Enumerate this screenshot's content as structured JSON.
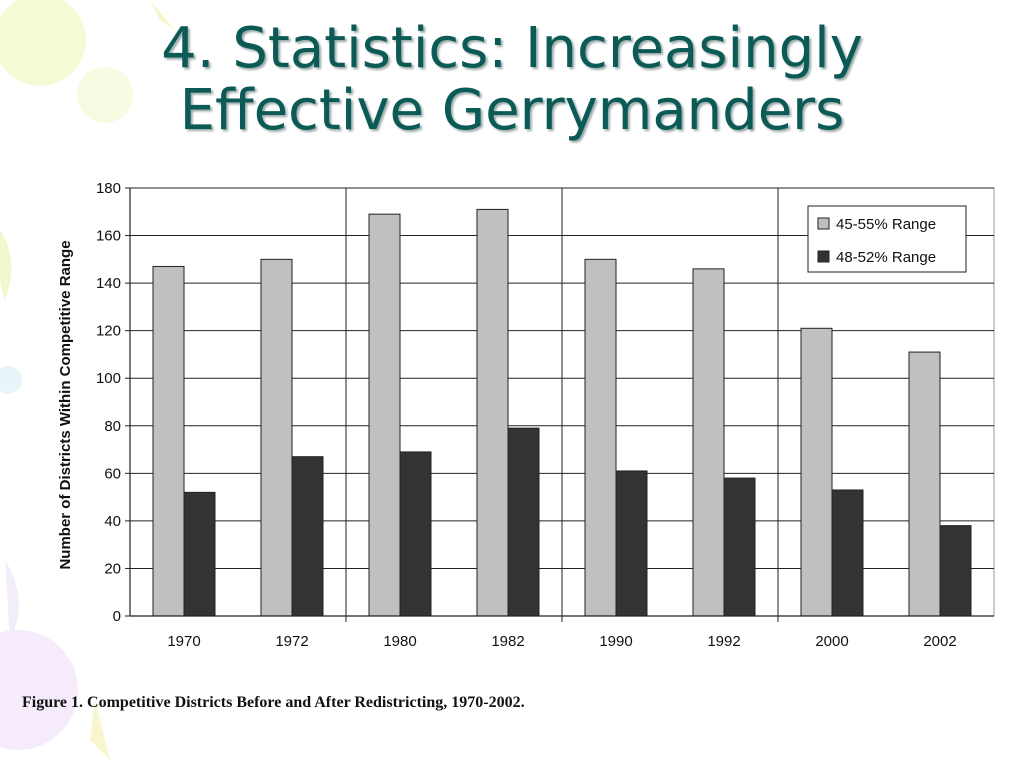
{
  "slide": {
    "title_line1": "4. Statistics: Increasingly",
    "title_line2": "Effective Gerrymanders",
    "caption": "Figure 1.  Competitive Districts Before and After Redistricting, 1970-2002."
  },
  "colors": {
    "title": "#0b5a55",
    "series_light": "#c0c0c0",
    "series_dark": "#333333"
  },
  "chart_data": {
    "type": "bar",
    "title": "",
    "xlabel": "",
    "ylabel": "Number of Districts Within Competitive Range",
    "ylim": [
      0,
      180
    ],
    "yticks": [
      0,
      20,
      40,
      60,
      80,
      100,
      120,
      140,
      160,
      180
    ],
    "categories": [
      "1970",
      "1972",
      "1980",
      "1982",
      "1990",
      "1992",
      "2000",
      "2002"
    ],
    "series": [
      {
        "name": "45-55% Range",
        "values": [
          147,
          150,
          169,
          171,
          150,
          146,
          121,
          111
        ]
      },
      {
        "name": "48-52% Range",
        "values": [
          52,
          67,
          69,
          79,
          61,
          58,
          53,
          38
        ]
      }
    ],
    "grid": true,
    "legend_position": "top-right",
    "decade_separators": true
  }
}
